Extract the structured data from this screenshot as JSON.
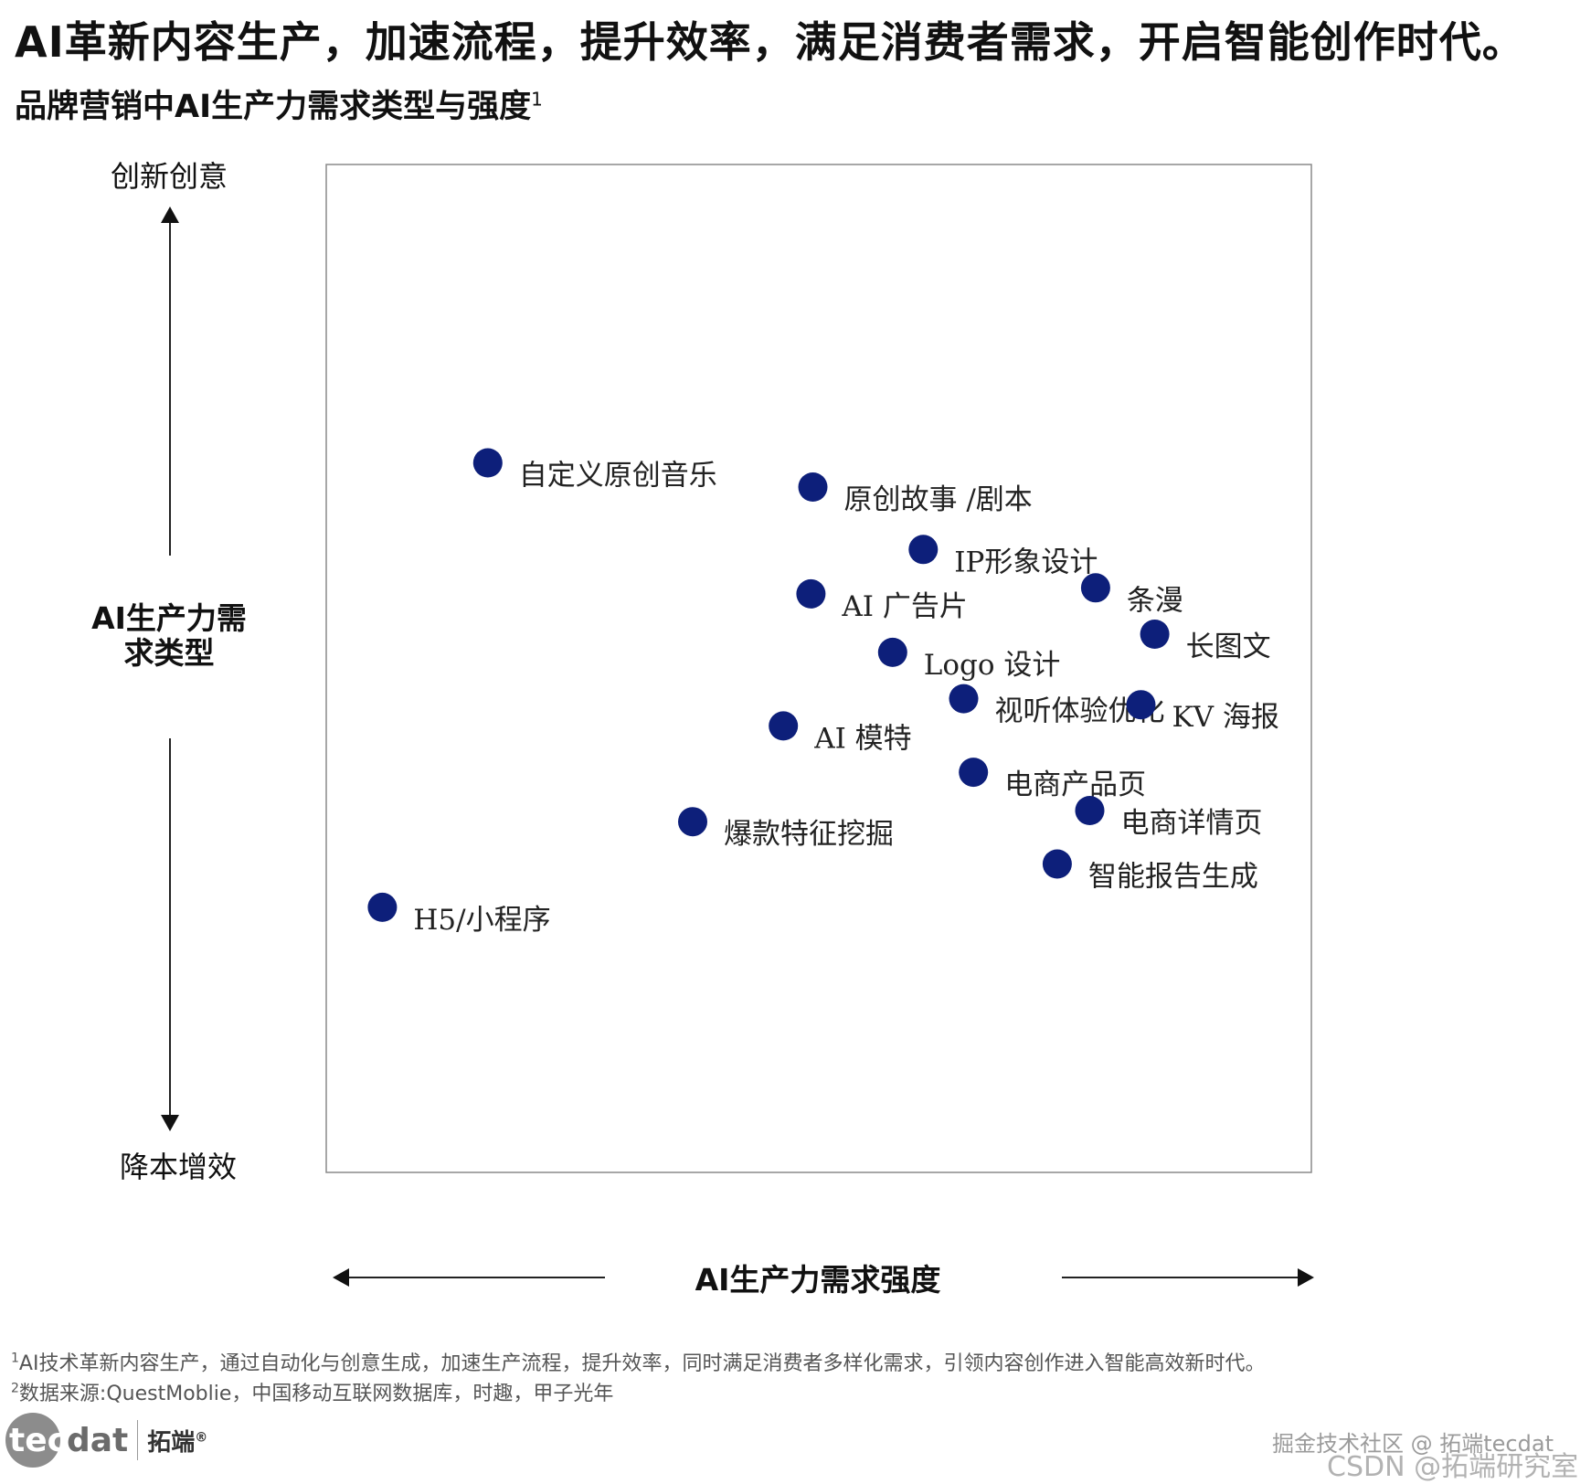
{
  "headline": "AI革新内容生产，加速流程，提升效率，满足消费者需求，开启智能创作时代。",
  "subtitle": "品牌营销中AI生产力需求类型与强度",
  "subtitle_sup": "1",
  "chart_data": {
    "type": "scatter",
    "xlabel": "AI生产力需求强度",
    "ylabel": "AI生产力需求类型",
    "y_axis_top": "创新创意",
    "y_axis_bottom": "降本增效",
    "xlim": [
      0,
      1
    ],
    "ylim": [
      0,
      1
    ],
    "grid": false,
    "color": "#0d1f7a",
    "points": [
      {
        "label": "自定义原创音乐",
        "x": 0.164,
        "y": 0.704
      },
      {
        "label": "原创故事 /剧本",
        "x": 0.494,
        "y": 0.68
      },
      {
        "label": "IP形象设计",
        "x": 0.606,
        "y": 0.618
      },
      {
        "label": "AI 广告片",
        "x": 0.492,
        "y": 0.574
      },
      {
        "label": "条漫",
        "x": 0.781,
        "y": 0.58
      },
      {
        "label": "长图文",
        "x": 0.841,
        "y": 0.534
      },
      {
        "label": "Logo  设计",
        "x": 0.575,
        "y": 0.516
      },
      {
        "label": "视听体验优化",
        "x": 0.647,
        "y": 0.47
      },
      {
        "label": "KV 海报",
        "x": 0.827,
        "y": 0.464
      },
      {
        "label": "AI 模特",
        "x": 0.464,
        "y": 0.443
      },
      {
        "label": "电商产品页",
        "x": 0.657,
        "y": 0.397
      },
      {
        "label": "电商详情页",
        "x": 0.775,
        "y": 0.359
      },
      {
        "label": "爆款特征挖掘",
        "x": 0.372,
        "y": 0.348
      },
      {
        "label": "智能报告生成",
        "x": 0.742,
        "y": 0.306
      },
      {
        "label": "H5/小程序",
        "x": 0.057,
        "y": 0.263
      }
    ]
  },
  "footnotes": {
    "fn1_mark": "1",
    "fn1": "AI技术革新内容生产，通过自动化与创意生成，加速生产流程，提升效率，同时满足消费者多样化需求，引领内容创作进入智能高效新时代。",
    "fn2_mark": "2",
    "fn2": "数据来源:QuestMoblie，中国移动互联网数据库，时趣，甲子光年"
  },
  "logo": {
    "brand_prefix": "tec",
    "brand_suffix": "dat",
    "cn": "拓端",
    "reg": "®"
  },
  "watermarks": {
    "line1": "掘金技术社区 @ 拓端tecdat",
    "line2": "CSDN @拓端研究室"
  }
}
